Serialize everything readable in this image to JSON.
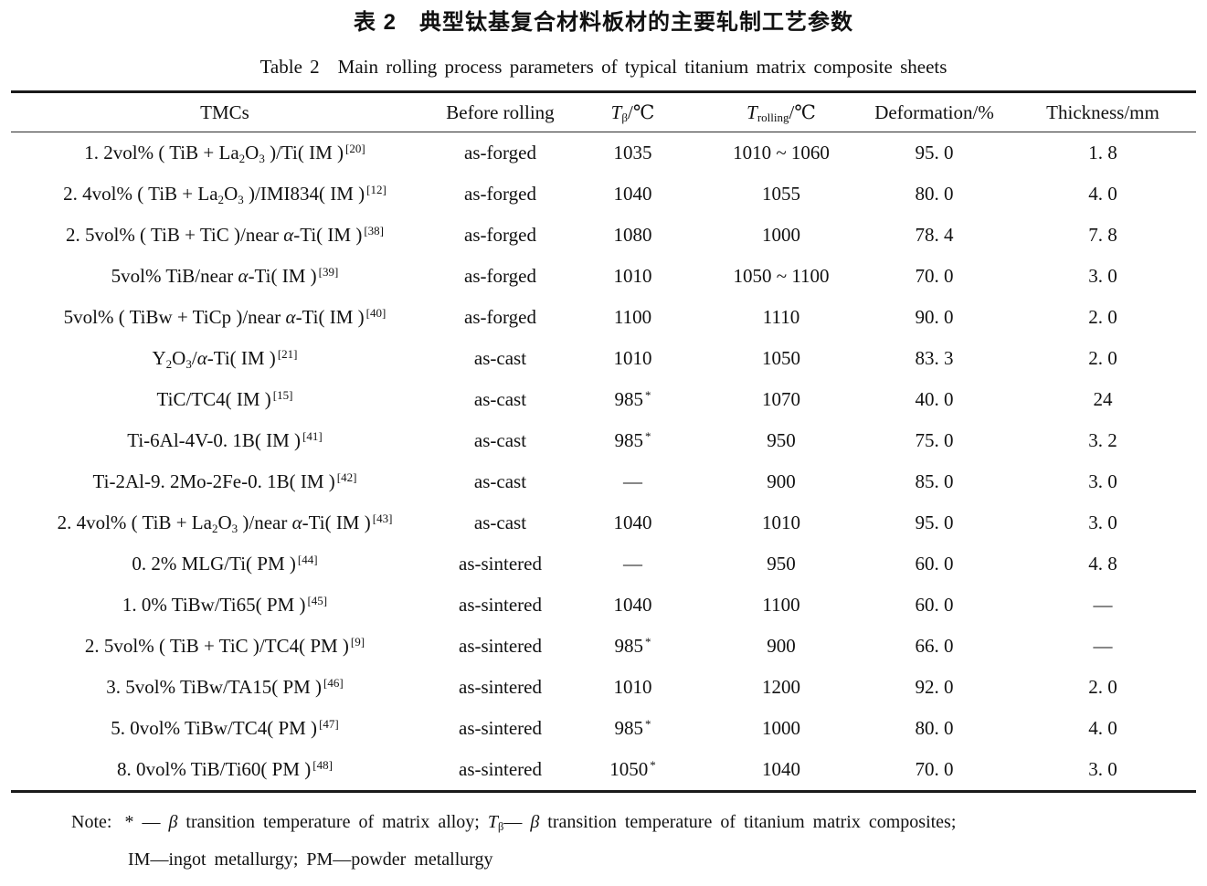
{
  "page": {
    "title_zh": "表 2　典型钛基复合材料板材的主要轧制工艺参数",
    "title_en": {
      "label": "Table 2",
      "text": "Main rolling process parameters of typical titanium matrix composite sheets"
    }
  },
  "table": {
    "headers": [
      "TMCs",
      "Before rolling",
      "[i]T[/i]_{β}/℃",
      "[i]T[/i]_{rolling}/℃",
      "Deformation/%",
      "Thickness/mm"
    ],
    "rows": [
      [
        "1. 2vol% ( TiB + La_{2}O_{3} )/Ti( IM )^{[20]}",
        "as-forged",
        "1035",
        "1010 ~ 1060",
        "95. 0",
        "1. 8"
      ],
      [
        "2. 4vol% ( TiB + La_{2}O_{3} )/IMI834( IM )^{[12]}",
        "as-forged",
        "1040",
        "1055",
        "80. 0",
        "4. 0"
      ],
      [
        "2. 5vol% ( TiB + TiC )/near [i]α[/i]-Ti( IM )^{[38]}",
        "as-forged",
        "1080",
        "1000",
        "78. 4",
        "7. 8"
      ],
      [
        "5vol% TiB/near [i]α[/i]-Ti( IM )^{[39]}",
        "as-forged",
        "1010",
        "1050 ~ 1100",
        "70. 0",
        "3. 0"
      ],
      [
        "5vol% ( TiBw + TiCp )/near [i]α[/i]-Ti( IM )^{[40]}",
        "as-forged",
        "1100",
        "1110",
        "90. 0",
        "2. 0"
      ],
      [
        "Y_{2}O_{3}/[i]α[/i]-Ti( IM )^{[21]}",
        "as-cast",
        "1010",
        "1050",
        "83. 3",
        "2. 0"
      ],
      [
        "TiC/TC4( IM )^{[15]}",
        "as-cast",
        "985^{*}",
        "1070",
        "40. 0",
        "24"
      ],
      [
        "Ti-6Al-4V-0. 1B( IM )^{[41]}",
        "as-cast",
        "985^{*}",
        "950",
        "75. 0",
        "3. 2"
      ],
      [
        "Ti-2Al-9. 2Mo-2Fe-0. 1B( IM )^{[42]}",
        "as-cast",
        "—",
        "900",
        "85. 0",
        "3. 0"
      ],
      [
        "2. 4vol% ( TiB + La_{2}O_{3} )/near [i]α[/i]-Ti( IM )^{[43]}",
        "as-cast",
        "1040",
        "1010",
        "95. 0",
        "3. 0"
      ],
      [
        "0. 2% MLG/Ti( PM )^{[44]}",
        "as-sintered",
        "—",
        "950",
        "60. 0",
        "4. 8"
      ],
      [
        "1. 0% TiBw/Ti65( PM )^{[45]}",
        "as-sintered",
        "1040",
        "1100",
        "60. 0",
        "—"
      ],
      [
        "2. 5vol% ( TiB + TiC )/TC4( PM )^{[9]}",
        "as-sintered",
        "985^{*}",
        "900",
        "66. 0",
        "—"
      ],
      [
        "3. 5vol% TiBw/TA15( PM )^{[46]}",
        "as-sintered",
        "1010",
        "1200",
        "92. 0",
        "2. 0"
      ],
      [
        "5. 0vol% TiBw/TC4( PM )^{[47]}",
        "as-sintered",
        "985^{*}",
        "1000",
        "80. 0",
        "4. 0"
      ],
      [
        "8. 0vol% TiB/Ti60( PM )^{[48]}",
        "as-sintered",
        "1050^{*}",
        "1040",
        "70. 0",
        "3. 0"
      ]
    ]
  },
  "note": {
    "label": "Note:",
    "line1": "* — [i]β[/i] transition temperature of matrix alloy; [i]T[/i]_{β}— [i]β[/i] transition temperature of titanium matrix composites;",
    "line2": "IM—ingot metallurgy; PM—powder metallurgy"
  },
  "colors": {
    "background": "#ffffff",
    "text": "#111111",
    "rule": "#1a1a1a"
  }
}
